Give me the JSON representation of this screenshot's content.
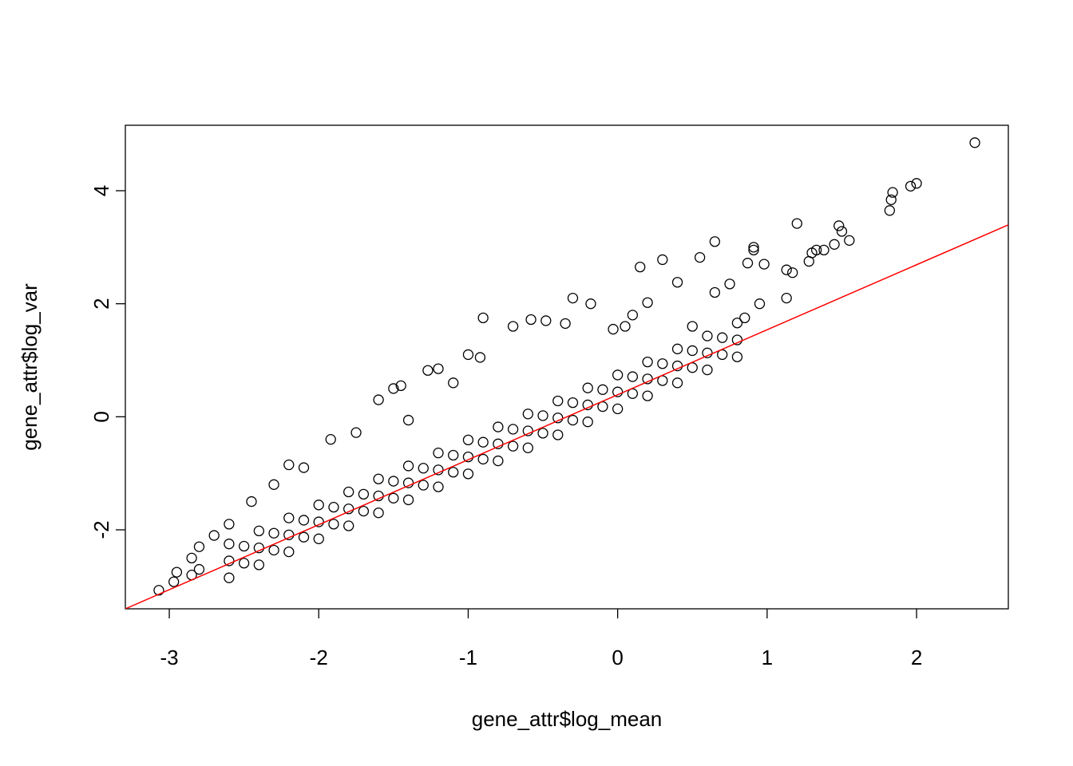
{
  "chart_data": {
    "type": "scatter",
    "x_label": "gene_attr$log_mean",
    "y_label": "gene_attr$log_var",
    "xlim": [
      -3.294,
      2.614
    ],
    "ylim": [
      -3.398,
      5.158
    ],
    "xticks": [
      -3,
      -2,
      -1,
      0,
      1,
      2
    ],
    "yticks": [
      -2,
      0,
      2,
      4
    ],
    "point_color": "#000000",
    "abline": {
      "intercept": 0.39,
      "slope": 1.15,
      "color": "#ff0000"
    },
    "x": [
      2.39,
      2.0,
      1.96,
      1.84,
      1.83,
      1.82,
      1.2,
      1.48,
      1.5,
      1.55,
      1.45,
      1.33,
      1.38,
      1.3,
      1.28,
      1.13,
      1.17,
      1.13,
      0.65,
      0.91,
      0.91,
      0.3,
      0.15,
      0.55,
      0.87,
      0.98,
      0.4,
      0.65,
      0.75,
      0.95,
      0.85,
      0.5,
      0.2,
      0.1,
      0.05,
      -0.3,
      -0.18,
      -0.9,
      -0.7,
      -0.58,
      -0.48,
      -0.35,
      -0.03,
      -1.0,
      -0.92,
      -1.2,
      -1.27,
      -1.1,
      -1.45,
      -1.5,
      -1.6,
      -1.4,
      -1.92,
      -1.75,
      -2.1,
      -2.2,
      -2.3,
      -2.45,
      -2.6,
      -2.7,
      -2.8,
      -2.85,
      -2.95,
      -3.07,
      -2.97,
      -2.85,
      -2.8,
      -2.6,
      -2.6,
      -2.6,
      -2.4,
      -2.4,
      -2.4,
      -2.2,
      -2.2,
      -2.2,
      -2.0,
      -2.0,
      -2.0,
      -1.8,
      -1.8,
      -1.8,
      -1.6,
      -1.6,
      -1.6,
      -1.4,
      -1.4,
      -1.4,
      -1.2,
      -1.2,
      -1.2,
      -1.0,
      -1.0,
      -1.0,
      -0.8,
      -0.8,
      -0.8,
      -0.6,
      -0.6,
      -0.6,
      -0.4,
      -0.4,
      -0.4,
      -0.2,
      -0.2,
      -0.2,
      0.0,
      0.0,
      0.0,
      0.2,
      0.2,
      0.2,
      0.4,
      0.4,
      0.4,
      0.6,
      0.6,
      0.6,
      0.8,
      0.8,
      0.8,
      -2.5,
      -2.5,
      -2.3,
      -2.3,
      -2.1,
      -2.1,
      -1.9,
      -1.9,
      -1.7,
      -1.7,
      -1.5,
      -1.5,
      -1.3,
      -1.3,
      -1.1,
      -1.1,
      -0.9,
      -0.9,
      -0.7,
      -0.7,
      -0.5,
      -0.5,
      -0.3,
      -0.3,
      -0.1,
      -0.1,
      0.1,
      0.1,
      0.3,
      0.3,
      0.5,
      0.5,
      0.7,
      0.7
    ],
    "y": [
      4.85,
      4.13,
      4.08,
      3.97,
      3.84,
      3.65,
      3.42,
      3.38,
      3.28,
      3.12,
      3.05,
      2.95,
      2.95,
      2.9,
      2.75,
      2.6,
      2.55,
      2.1,
      3.1,
      3.0,
      2.95,
      2.78,
      2.65,
      2.82,
      2.72,
      2.7,
      2.38,
      2.2,
      2.35,
      2.0,
      1.75,
      1.6,
      2.02,
      1.8,
      1.6,
      2.1,
      2.0,
      1.75,
      1.6,
      1.72,
      1.7,
      1.65,
      1.55,
      1.1,
      1.05,
      0.85,
      0.82,
      0.6,
      0.55,
      0.5,
      0.3,
      -0.06,
      -0.4,
      -0.28,
      -0.9,
      -0.85,
      -1.2,
      -1.5,
      -1.9,
      -2.1,
      -2.3,
      -2.5,
      -2.75,
      -3.07,
      -2.92,
      -2.8,
      -2.7,
      -2.85,
      -2.55,
      -2.25,
      -2.62,
      -2.32,
      -2.02,
      -2.39,
      -2.09,
      -1.79,
      -2.16,
      -1.86,
      -1.56,
      -1.93,
      -1.63,
      -1.33,
      -1.7,
      -1.4,
      -1.1,
      -1.47,
      -1.17,
      -0.87,
      -1.24,
      -0.94,
      -0.64,
      -1.01,
      -0.71,
      -0.41,
      -0.78,
      -0.48,
      -0.18,
      -0.55,
      -0.25,
      0.05,
      -0.32,
      -0.02,
      0.28,
      -0.09,
      0.21,
      0.51,
      0.14,
      0.44,
      0.74,
      0.37,
      0.67,
      0.97,
      0.6,
      0.9,
      1.2,
      0.83,
      1.13,
      1.43,
      1.06,
      1.36,
      1.66,
      -2.59,
      -2.29,
      -2.36,
      -2.06,
      -2.13,
      -1.83,
      -1.9,
      -1.6,
      -1.67,
      -1.37,
      -1.44,
      -1.14,
      -1.21,
      -0.91,
      -0.98,
      -0.68,
      -0.75,
      -0.45,
      -0.52,
      -0.22,
      -0.29,
      0.02,
      -0.06,
      0.25,
      0.18,
      0.48,
      0.41,
      0.71,
      0.64,
      0.94,
      0.87,
      1.17,
      1.1,
      1.4
    ]
  }
}
